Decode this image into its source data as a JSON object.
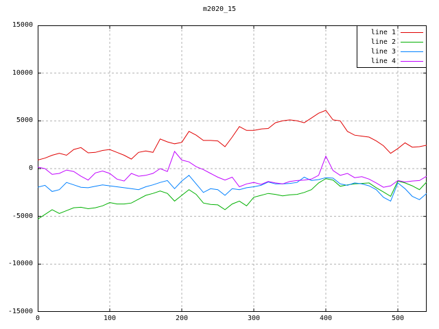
{
  "title": "m2020_15",
  "colors": {
    "background": "#ffffff",
    "border": "#000000",
    "grid": "#b0b0b0",
    "line1": "#e00000",
    "line2": "#00b000",
    "line3": "#0080ff",
    "line4": "#c000ff"
  },
  "legend": [
    {
      "label": "line 1",
      "color": "#e00000"
    },
    {
      "label": "line 2",
      "color": "#00b000"
    },
    {
      "label": "line 3",
      "color": "#0080ff"
    },
    {
      "label": "line 4",
      "color": "#c000ff"
    }
  ],
  "axes": {
    "x": {
      "min": 0,
      "max": 540,
      "ticks": [
        0,
        100,
        200,
        300,
        400,
        500
      ]
    },
    "y": {
      "min": -15000,
      "max": 15000,
      "ticks": [
        15000,
        10000,
        5000,
        0,
        -5000,
        -10000,
        -15000
      ]
    }
  },
  "chart_data": {
    "type": "line",
    "title": "m2020_15",
    "xlabel": "",
    "ylabel": "",
    "xlim": [
      0,
      540
    ],
    "ylim": [
      -15000,
      15000
    ],
    "grid": true,
    "grid_style": "dashed-gray",
    "legend_position": "top-right",
    "legend_box": true,
    "x": [
      0,
      10,
      20,
      30,
      40,
      50,
      60,
      70,
      80,
      90,
      100,
      110,
      120,
      130,
      140,
      150,
      160,
      170,
      180,
      190,
      200,
      210,
      220,
      230,
      240,
      250,
      260,
      270,
      280,
      290,
      300,
      310,
      320,
      330,
      340,
      350,
      360,
      370,
      380,
      390,
      400,
      410,
      420,
      430,
      440,
      450,
      460,
      470,
      480,
      490,
      500,
      510,
      520,
      530,
      540
    ],
    "series": [
      {
        "name": "line 1",
        "color": "#e00000",
        "values": [
          900,
          1100,
          1400,
          1600,
          1400,
          2000,
          2200,
          1650,
          1700,
          1900,
          2000,
          1700,
          1400,
          1000,
          1700,
          1850,
          1700,
          3100,
          2800,
          2600,
          2750,
          3900,
          3500,
          2950,
          2950,
          2900,
          2300,
          3300,
          4400,
          4000,
          4000,
          4150,
          4200,
          4800,
          5000,
          5100,
          5000,
          4800,
          5300,
          5800,
          6100,
          5100,
          5000,
          3900,
          3500,
          3400,
          3300,
          2900,
          2400,
          1600,
          2100,
          2700,
          2250,
          2300,
          2450
        ]
      },
      {
        "name": "line 2",
        "color": "#00b000",
        "values": [
          -5300,
          -4800,
          -4300,
          -4700,
          -4400,
          -4100,
          -4050,
          -4200,
          -4100,
          -3900,
          -3550,
          -3700,
          -3700,
          -3600,
          -3200,
          -2800,
          -2600,
          -2350,
          -2600,
          -3400,
          -2800,
          -2200,
          -2700,
          -3600,
          -3750,
          -3800,
          -4300,
          -3700,
          -3400,
          -3900,
          -3000,
          -2800,
          -2600,
          -2700,
          -2850,
          -2750,
          -2700,
          -2500,
          -2200,
          -1500,
          -1050,
          -1200,
          -1850,
          -1700,
          -1600,
          -1550,
          -1500,
          -2000,
          -2450,
          -2900,
          -1300,
          -1500,
          -1800,
          -2200,
          -1400
        ]
      },
      {
        "name": "line 3",
        "color": "#0080ff",
        "values": [
          -1950,
          -1750,
          -2400,
          -2200,
          -1450,
          -1700,
          -1950,
          -2000,
          -1850,
          -1700,
          -1800,
          -1900,
          -2000,
          -2100,
          -2200,
          -1900,
          -1700,
          -1450,
          -1250,
          -2100,
          -1300,
          -700,
          -1600,
          -2500,
          -2100,
          -2200,
          -2800,
          -2100,
          -2200,
          -2000,
          -1900,
          -1750,
          -1400,
          -1600,
          -1600,
          -1550,
          -1450,
          -900,
          -1250,
          -1150,
          -950,
          -1000,
          -1600,
          -1750,
          -1500,
          -1600,
          -1800,
          -2200,
          -3000,
          -3400,
          -1500,
          -2100,
          -2900,
          -3250,
          -2600
        ]
      },
      {
        "name": "line 4",
        "color": "#c000ff",
        "values": [
          150,
          0,
          -600,
          -500,
          -150,
          -300,
          -800,
          -1200,
          -450,
          -250,
          -500,
          -1100,
          -1300,
          -500,
          -800,
          -700,
          -500,
          0,
          -300,
          1800,
          900,
          700,
          200,
          -100,
          -500,
          -900,
          -1200,
          -900,
          -1900,
          -1600,
          -1450,
          -1650,
          -1350,
          -1500,
          -1600,
          -1350,
          -1250,
          -1200,
          -1100,
          -700,
          1300,
          -200,
          -700,
          -500,
          -950,
          -850,
          -1100,
          -1500,
          -1950,
          -1800,
          -1250,
          -1400,
          -1300,
          -1250,
          -800
        ]
      }
    ]
  }
}
